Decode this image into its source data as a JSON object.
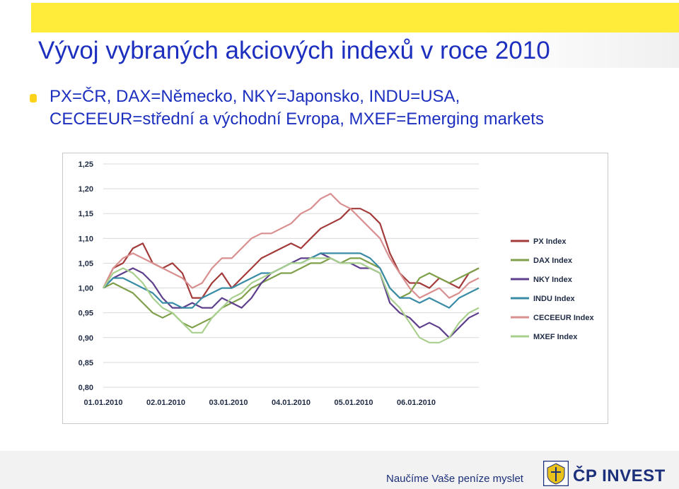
{
  "slide": {
    "title": "Vývoj vybraných akciových indexů v roce 2010",
    "bullet_line1": "PX=ČR, DAX=Německo, NKY=Japonsko, INDU=USA,",
    "bullet_line2": "CECEEUR=střední a východní Evropa, MXEF=Emerging markets"
  },
  "footer": {
    "slogan": "Naučíme Vaše peníze myslet",
    "brand": "ČP INVEST"
  },
  "colors": {
    "accent_yellow": "#ffec3a",
    "title_blue": "#1c2fbf",
    "brand_navy": "#1c2f7a"
  },
  "chart_data": {
    "type": "line",
    "title": "",
    "xlabel": "",
    "ylabel": "",
    "ylim": [
      0.8,
      1.25
    ],
    "y_ticks": [
      "1,25",
      "1,20",
      "1,15",
      "1,10",
      "1,05",
      "1,00",
      "0,95",
      "0,90",
      "0,85",
      "0,80"
    ],
    "x_ticks": [
      "01.01.2010",
      "02.01.2010",
      "03.01.2010",
      "04.01.2010",
      "05.01.2010",
      "06.01.2010"
    ],
    "x_period_count": 6,
    "grid": "horizontal",
    "legend_position": "right",
    "series": [
      {
        "name": "PX Index",
        "color": "#a33b3b",
        "values": [
          1.0,
          1.04,
          1.05,
          1.08,
          1.09,
          1.05,
          1.04,
          1.05,
          1.03,
          0.98,
          0.98,
          1.01,
          1.03,
          1.0,
          1.02,
          1.04,
          1.06,
          1.07,
          1.08,
          1.09,
          1.08,
          1.1,
          1.12,
          1.13,
          1.14,
          1.16,
          1.16,
          1.15,
          1.13,
          1.07,
          1.03,
          1.01,
          1.01,
          1.0,
          1.02,
          1.01,
          1.0,
          1.03,
          1.04
        ]
      },
      {
        "name": "DAX Index",
        "color": "#7fa04a",
        "values": [
          1.0,
          1.01,
          1.0,
          0.99,
          0.97,
          0.95,
          0.94,
          0.95,
          0.93,
          0.92,
          0.93,
          0.94,
          0.96,
          0.97,
          0.98,
          1.0,
          1.01,
          1.02,
          1.03,
          1.03,
          1.04,
          1.05,
          1.05,
          1.06,
          1.05,
          1.06,
          1.06,
          1.05,
          1.04,
          1.0,
          0.98,
          0.99,
          1.02,
          1.03,
          1.02,
          1.01,
          1.02,
          1.03,
          1.04
        ]
      },
      {
        "name": "NKY Index",
        "color": "#5e3f8c",
        "values": [
          1.0,
          1.02,
          1.03,
          1.04,
          1.03,
          1.01,
          0.98,
          0.96,
          0.96,
          0.97,
          0.96,
          0.96,
          0.98,
          0.97,
          0.96,
          0.98,
          1.01,
          1.03,
          1.04,
          1.05,
          1.06,
          1.06,
          1.07,
          1.06,
          1.05,
          1.05,
          1.04,
          1.04,
          1.03,
          0.97,
          0.95,
          0.94,
          0.92,
          0.93,
          0.92,
          0.9,
          0.92,
          0.94,
          0.95
        ]
      },
      {
        "name": "INDU Index",
        "color": "#3a8ca6",
        "values": [
          1.0,
          1.02,
          1.02,
          1.01,
          1.0,
          0.99,
          0.97,
          0.97,
          0.96,
          0.96,
          0.98,
          0.99,
          1.0,
          1.0,
          1.01,
          1.02,
          1.03,
          1.03,
          1.04,
          1.05,
          1.05,
          1.06,
          1.07,
          1.07,
          1.07,
          1.07,
          1.07,
          1.06,
          1.04,
          1.0,
          0.98,
          0.98,
          0.97,
          0.98,
          0.97,
          0.96,
          0.98,
          0.99,
          1.0
        ]
      },
      {
        "name": "CECEEUR Index",
        "color": "#d98f8f",
        "values": [
          1.0,
          1.04,
          1.06,
          1.07,
          1.06,
          1.05,
          1.04,
          1.03,
          1.02,
          1.0,
          1.01,
          1.04,
          1.06,
          1.06,
          1.08,
          1.1,
          1.11,
          1.11,
          1.12,
          1.13,
          1.15,
          1.16,
          1.18,
          1.19,
          1.17,
          1.16,
          1.14,
          1.12,
          1.1,
          1.06,
          1.03,
          1.0,
          0.98,
          0.99,
          1.0,
          0.98,
          0.99,
          1.01,
          1.02
        ]
      },
      {
        "name": "MXEF Index",
        "color": "#a9cf8e",
        "values": [
          1.0,
          1.03,
          1.04,
          1.03,
          1.01,
          0.98,
          0.96,
          0.95,
          0.93,
          0.91,
          0.91,
          0.94,
          0.96,
          0.98,
          0.99,
          1.01,
          1.02,
          1.03,
          1.04,
          1.05,
          1.05,
          1.06,
          1.06,
          1.06,
          1.05,
          1.05,
          1.05,
          1.04,
          1.03,
          0.98,
          0.96,
          0.93,
          0.9,
          0.89,
          0.89,
          0.9,
          0.93,
          0.95,
          0.96
        ]
      }
    ]
  }
}
